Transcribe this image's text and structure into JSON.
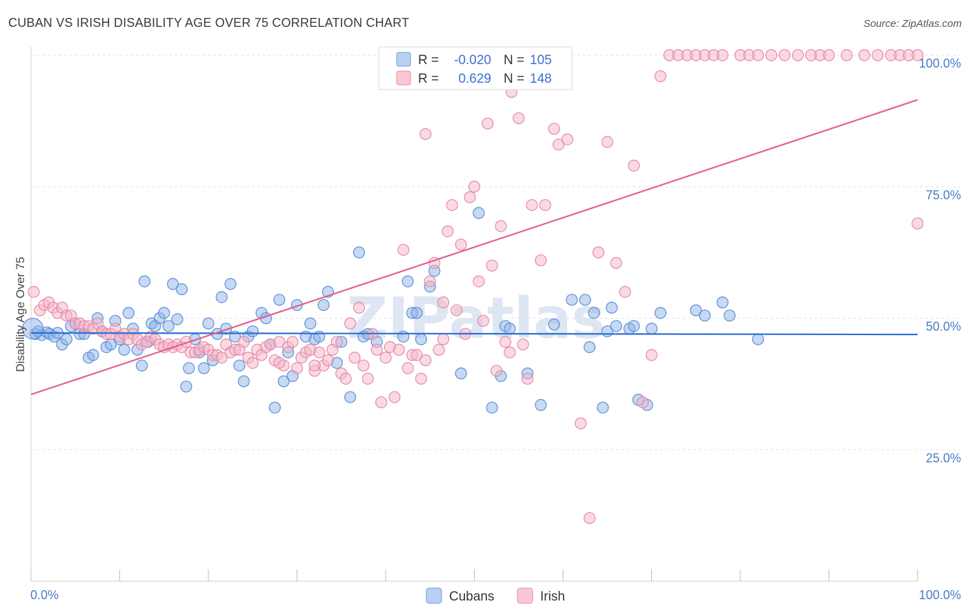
{
  "chart_data": {
    "type": "scatter",
    "title": "CUBAN VS IRISH DISABILITY AGE OVER 75 CORRELATION CHART",
    "source": "Source: ZipAtlas.com",
    "ylabel": "Disability Age Over 75",
    "xlabel": "",
    "xlim": [
      0,
      100
    ],
    "ylim": [
      0,
      100
    ],
    "x_tick_labels": [
      "0.0%",
      "100.0%"
    ],
    "y_ticks": [
      25,
      50,
      75,
      100
    ],
    "y_tick_labels": [
      "25.0%",
      "50.0%",
      "75.0%",
      "100.0%"
    ],
    "grid": true,
    "legend_position": "top-center",
    "watermark": "ZIPatlas",
    "stats": [
      {
        "r_label": "R =",
        "r": "-0.020",
        "n_label": "N =",
        "n": "105"
      },
      {
        "r_label": "R =",
        "r": "0.629",
        "n_label": "N =",
        "n": "148"
      }
    ],
    "series": [
      {
        "name": "Cubans",
        "color": "#8fb4e8",
        "edge": "#5c8fd6",
        "trend_color": "#2b6fd6",
        "trend": [
          [
            0,
            47.2
          ],
          [
            100,
            46.9
          ]
        ],
        "points": [
          [
            0.5,
            47
          ],
          [
            0.8,
            47.5
          ],
          [
            1.2,
            46.8
          ],
          [
            1.8,
            47.3
          ],
          [
            2.1,
            47
          ],
          [
            2.6,
            46.5
          ],
          [
            3.0,
            47.2
          ],
          [
            3.5,
            45
          ],
          [
            4.0,
            46
          ],
          [
            4.5,
            48.5
          ],
          [
            5.0,
            49
          ],
          [
            5.5,
            47
          ],
          [
            6.0,
            47
          ],
          [
            6.5,
            42.5
          ],
          [
            7.0,
            43
          ],
          [
            7.5,
            50
          ],
          [
            8.0,
            47.5
          ],
          [
            8.5,
            44.5
          ],
          [
            9.0,
            45
          ],
          [
            9.5,
            49.5
          ],
          [
            10.0,
            46
          ],
          [
            10.5,
            44
          ],
          [
            11.0,
            51
          ],
          [
            11.5,
            48
          ],
          [
            12.0,
            44
          ],
          [
            12.5,
            41
          ],
          [
            12.8,
            57
          ],
          [
            13.2,
            45.5
          ],
          [
            13.6,
            49
          ],
          [
            14.0,
            48.5
          ],
          [
            14.5,
            50
          ],
          [
            15.0,
            51
          ],
          [
            15.5,
            48.5
          ],
          [
            16.0,
            56.5
          ],
          [
            16.5,
            49.8
          ],
          [
            17.0,
            55.5
          ],
          [
            17.5,
            37
          ],
          [
            17.8,
            40.5
          ],
          [
            18.5,
            46
          ],
          [
            19.0,
            43.5
          ],
          [
            19.5,
            40.5
          ],
          [
            20.0,
            49
          ],
          [
            20.5,
            42
          ],
          [
            21.0,
            47
          ],
          [
            21.5,
            54
          ],
          [
            22.0,
            48
          ],
          [
            22.5,
            56.5
          ],
          [
            23.0,
            46.5
          ],
          [
            23.5,
            41
          ],
          [
            24.0,
            38
          ],
          [
            24.5,
            46.5
          ],
          [
            25.0,
            47.5
          ],
          [
            26.0,
            51
          ],
          [
            26.5,
            50
          ],
          [
            27.0,
            45
          ],
          [
            27.5,
            33
          ],
          [
            28.0,
            53.5
          ],
          [
            28.5,
            38
          ],
          [
            29.0,
            43.5
          ],
          [
            29.5,
            39
          ],
          [
            30.0,
            52.5
          ],
          [
            31.0,
            46.5
          ],
          [
            31.5,
            49
          ],
          [
            32.0,
            46
          ],
          [
            32.5,
            46.5
          ],
          [
            33.0,
            52.5
          ],
          [
            33.5,
            55
          ],
          [
            34.5,
            41.5
          ],
          [
            35.0,
            45.5
          ],
          [
            36.0,
            35
          ],
          [
            37.0,
            62.5
          ],
          [
            37.5,
            46.5
          ],
          [
            38.0,
            47
          ],
          [
            39.0,
            45.5
          ],
          [
            42.0,
            46.5
          ],
          [
            42.5,
            57
          ],
          [
            43.0,
            51
          ],
          [
            43.5,
            51
          ],
          [
            44.0,
            46
          ],
          [
            45.0,
            56
          ],
          [
            45.5,
            59
          ],
          [
            48.5,
            39.5
          ],
          [
            50.5,
            70
          ],
          [
            52.0,
            33
          ],
          [
            53.0,
            39
          ],
          [
            53.5,
            48.5
          ],
          [
            54.0,
            48
          ],
          [
            56.0,
            39.5
          ],
          [
            57.5,
            33.5
          ],
          [
            59.0,
            48.8
          ],
          [
            61.0,
            53.5
          ],
          [
            62.5,
            53.5
          ],
          [
            63.0,
            44.5
          ],
          [
            63.5,
            51
          ],
          [
            64.5,
            33
          ],
          [
            65.0,
            47.5
          ],
          [
            65.5,
            52
          ],
          [
            66.0,
            48.5
          ],
          [
            67.5,
            48
          ],
          [
            68.0,
            48.5
          ],
          [
            68.5,
            34.5
          ],
          [
            69.5,
            33.5
          ],
          [
            70.0,
            48
          ],
          [
            71.0,
            51
          ],
          [
            75.0,
            51.5
          ],
          [
            76.0,
            50.5
          ],
          [
            78.0,
            53
          ],
          [
            78.8,
            50.5
          ],
          [
            82.0,
            46
          ]
        ],
        "highlight": [
          [
            0.2,
            48
          ]
        ]
      },
      {
        "name": "Irish",
        "color": "#f4b6c8",
        "edge": "#e888a6",
        "trend_color": "#e0608e",
        "trend": [
          [
            0,
            35.5
          ],
          [
            100,
            91.5
          ]
        ],
        "points": [
          [
            0.3,
            55
          ],
          [
            1.0,
            51.5
          ],
          [
            1.5,
            52.5
          ],
          [
            2.0,
            53
          ],
          [
            2.5,
            52
          ],
          [
            3.0,
            51
          ],
          [
            3.5,
            52
          ],
          [
            4.0,
            50.5
          ],
          [
            4.5,
            50.5
          ],
          [
            5.0,
            49
          ],
          [
            5.5,
            49
          ],
          [
            6.0,
            48.5
          ],
          [
            6.5,
            48.5
          ],
          [
            7.0,
            48
          ],
          [
            7.5,
            49
          ],
          [
            8.0,
            47.5
          ],
          [
            8.5,
            47
          ],
          [
            9.0,
            47
          ],
          [
            9.5,
            48
          ],
          [
            10.0,
            46.5
          ],
          [
            10.5,
            47
          ],
          [
            11.0,
            46
          ],
          [
            11.5,
            47
          ],
          [
            12.0,
            46
          ],
          [
            12.5,
            45
          ],
          [
            13.0,
            45.5
          ],
          [
            13.5,
            46.5
          ],
          [
            14.0,
            46
          ],
          [
            14.5,
            45
          ],
          [
            15.0,
            44.5
          ],
          [
            15.5,
            45
          ],
          [
            16.0,
            44.5
          ],
          [
            16.5,
            45
          ],
          [
            17.0,
            44.5
          ],
          [
            17.5,
            45.5
          ],
          [
            18.0,
            43.5
          ],
          [
            18.5,
            43.5
          ],
          [
            19.0,
            44
          ],
          [
            19.5,
            44.5
          ],
          [
            20.0,
            44
          ],
          [
            20.5,
            43
          ],
          [
            21.0,
            43
          ],
          [
            21.5,
            42.5
          ],
          [
            22.0,
            45
          ],
          [
            22.5,
            43.5
          ],
          [
            23.0,
            44
          ],
          [
            23.5,
            44
          ],
          [
            24.0,
            45.5
          ],
          [
            24.5,
            42.5
          ],
          [
            25.0,
            41.5
          ],
          [
            25.5,
            44
          ],
          [
            26.0,
            43
          ],
          [
            26.5,
            44.5
          ],
          [
            27.0,
            45
          ],
          [
            27.5,
            42
          ],
          [
            28.0,
            45.5
          ],
          [
            28.5,
            41
          ],
          [
            29.0,
            44.5
          ],
          [
            29.5,
            45.5
          ],
          [
            30.0,
            40.5
          ],
          [
            30.5,
            42.5
          ],
          [
            31.0,
            43.5
          ],
          [
            31.5,
            44
          ],
          [
            32.0,
            40
          ],
          [
            32.5,
            43.5
          ],
          [
            33.0,
            41
          ],
          [
            33.5,
            42
          ],
          [
            34.0,
            44
          ],
          [
            34.5,
            45.5
          ],
          [
            35.0,
            39.5
          ],
          [
            35.5,
            38.5
          ],
          [
            36.0,
            49
          ],
          [
            36.5,
            42.5
          ],
          [
            37.0,
            52
          ],
          [
            37.5,
            41
          ],
          [
            38.0,
            38.5
          ],
          [
            38.5,
            47
          ],
          [
            39.0,
            44
          ],
          [
            39.5,
            34
          ],
          [
            40.0,
            42.5
          ],
          [
            40.5,
            44.5
          ],
          [
            41.0,
            35
          ],
          [
            41.5,
            44
          ],
          [
            42.0,
            63
          ],
          [
            42.5,
            40.5
          ],
          [
            43.0,
            43
          ],
          [
            43.5,
            43
          ],
          [
            44.0,
            38.5
          ],
          [
            44.5,
            42
          ],
          [
            45.0,
            57
          ],
          [
            45.5,
            60.5
          ],
          [
            46.0,
            44
          ],
          [
            46.5,
            53
          ],
          [
            47.0,
            66.5
          ],
          [
            47.5,
            71.5
          ],
          [
            48.0,
            51.5
          ],
          [
            48.5,
            64
          ],
          [
            49.0,
            47
          ],
          [
            49.5,
            73
          ],
          [
            50.0,
            75
          ],
          [
            50.5,
            57
          ],
          [
            51.0,
            49.5
          ],
          [
            51.5,
            87
          ],
          [
            52.0,
            60
          ],
          [
            52.5,
            40
          ],
          [
            53.0,
            67.5
          ],
          [
            53.5,
            45.5
          ],
          [
            54.0,
            43.5
          ],
          [
            55.0,
            88
          ],
          [
            55.5,
            45
          ],
          [
            56.0,
            38.5
          ],
          [
            56.5,
            71.5
          ],
          [
            57.5,
            61
          ],
          [
            58.0,
            71.5
          ],
          [
            59.0,
            86
          ],
          [
            59.5,
            83
          ],
          [
            60.5,
            84
          ],
          [
            62.0,
            30
          ],
          [
            63.0,
            12
          ],
          [
            64.0,
            62.5
          ],
          [
            65.0,
            83.5
          ],
          [
            66.0,
            60.5
          ],
          [
            67.0,
            55
          ],
          [
            68.0,
            79
          ],
          [
            69.0,
            34
          ],
          [
            70.0,
            43
          ],
          [
            71.0,
            96
          ],
          [
            72.0,
            100
          ],
          [
            73.0,
            100
          ],
          [
            74.0,
            100
          ],
          [
            75.0,
            100
          ],
          [
            76.0,
            100
          ],
          [
            77.0,
            100
          ],
          [
            78.0,
            100
          ],
          [
            80.0,
            100
          ],
          [
            81.0,
            100
          ],
          [
            82.0,
            100
          ],
          [
            83.5,
            100
          ],
          [
            85.0,
            100
          ],
          [
            86.5,
            100
          ],
          [
            88.0,
            100
          ],
          [
            89.0,
            100
          ],
          [
            90.0,
            100
          ],
          [
            92.0,
            100
          ],
          [
            94.0,
            100
          ],
          [
            95.5,
            100
          ],
          [
            97.0,
            100
          ],
          [
            98.0,
            100
          ],
          [
            99.0,
            100
          ],
          [
            100.0,
            100
          ],
          [
            50.5,
            100
          ],
          [
            53.0,
            100
          ],
          [
            100.0,
            68
          ],
          [
            44.5,
            85
          ],
          [
            54.2,
            93
          ],
          [
            46.5,
            46
          ],
          [
            32.0,
            41
          ],
          [
            28.0,
            41.5
          ]
        ],
        "highlight": []
      }
    ]
  }
}
